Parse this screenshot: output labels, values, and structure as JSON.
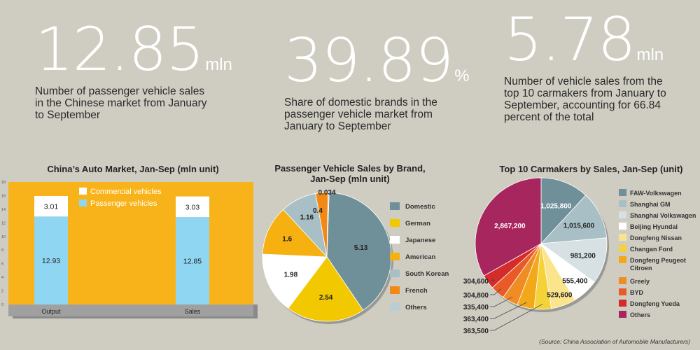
{
  "stats": [
    {
      "value": "12.85",
      "unit": "mln",
      "desc": "Number of passenger vehicle sales in the Chinese market from January to September"
    },
    {
      "value": "39.89",
      "unit": "%",
      "desc": "Share of domestic brands in the passenger vehicle market from January to September"
    },
    {
      "value": "5.78",
      "unit": "mln",
      "desc": "Number of vehicle sales from the top 10 carmakers from January to September, accounting for 66.84 percent of the total"
    }
  ],
  "chart_data": [
    {
      "type": "bar",
      "title": "China’s Auto Market, Jan-Sep (mln unit)",
      "categories": [
        "Output",
        "Sales"
      ],
      "series": [
        {
          "name": "Passenger vehicles",
          "values": [
            12.93,
            12.85
          ],
          "color": "#8fd6f2"
        },
        {
          "name": "Commercial vehicles",
          "values": [
            3.01,
            3.03
          ],
          "color": "#ffffff"
        }
      ],
      "yticks": [
        0,
        2,
        4,
        6,
        8,
        10,
        12,
        14,
        16,
        18
      ],
      "ylim": [
        0,
        18
      ],
      "legend": "top"
    },
    {
      "type": "pie",
      "title": "Passenger Vehicle Sales by Brand, Jan-Sep (mln unit)",
      "labels": [
        "Domestic",
        "German",
        "Japanese",
        "American",
        "South Korean",
        "French",
        "Others"
      ],
      "values": [
        5.13,
        2.54,
        1.98,
        1.6,
        1.16,
        0.4,
        0.034
      ],
      "value_labels": [
        "5.13",
        "2.54",
        "1.98",
        "1.6",
        "1.16",
        "0.4",
        "0.034"
      ],
      "colors": [
        "#6f8f99",
        "#f2c800",
        "#ffffff",
        "#f6b010",
        "#a8bfc6",
        "#f08a14",
        "#b9cdd2"
      ],
      "legend": "right"
    },
    {
      "type": "pie",
      "title": "Top 10 Carmakers by Sales, Jan-Sep (unit)",
      "labels": [
        "FAW-Volkswagen",
        "Shanghai GM",
        "Shanghai Volkswagen",
        "Beijing Hyundai",
        "Dongfeng Nissan",
        "Changan Ford",
        "Dongfeng Peugeot Citroen",
        "Greely",
        "BYD",
        "Dongfeng Yueda",
        "Others"
      ],
      "values": [
        1025800,
        1015600,
        981200,
        555400,
        529600,
        363500,
        363400,
        335400,
        304800,
        304600,
        2867200
      ],
      "value_labels": [
        "1,025,800",
        "1,015,600",
        "981,200",
        "555,400",
        "529,600",
        "363,500",
        "363,400",
        "335,400",
        "304,800",
        "304,600",
        "2,867,200"
      ],
      "colors": [
        "#6f8f99",
        "#a8bfc6",
        "#d7e1e4",
        "#ffffff",
        "#fbe58c",
        "#f6d23a",
        "#f3a81a",
        "#f08c24",
        "#e95a26",
        "#d42b2b",
        "#a8265e"
      ],
      "legend": "right"
    }
  ],
  "source": "(Source: China Association of Automobile Manufacturers)"
}
